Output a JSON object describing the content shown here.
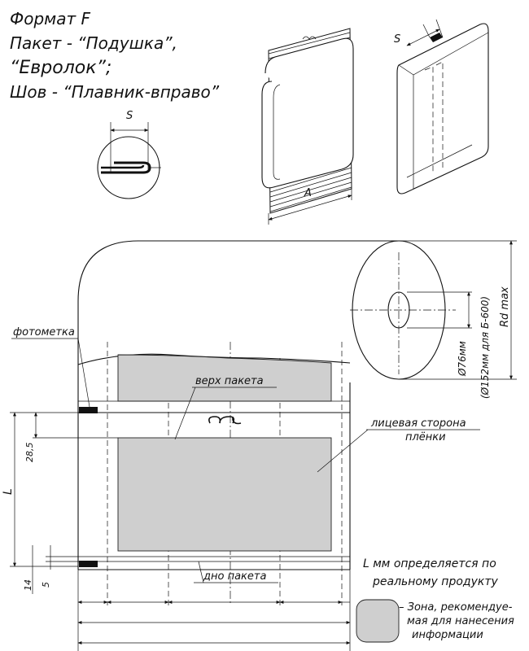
{
  "title": {
    "line1": "Формат F",
    "line2": "Пакет - “Подушка”,",
    "line3": "“Евролок”;",
    "line4": "Шов - “Плавник-вправо”"
  },
  "dims": {
    "s_detail": "S",
    "s_box": "S",
    "a": "A",
    "rd_max": "Rd max",
    "core": "Ø76мм",
    "core_alt": "(Ø152мм для Б-600)",
    "l": "L",
    "d28": "28,5",
    "d14": "14",
    "d5": "5"
  },
  "labels": {
    "photomark": "фотометка",
    "bag_top": "верх пакета",
    "face_line1": "лицевая сторона",
    "face_line2": "плёнки",
    "bag_bottom": "дно пакета"
  },
  "notes": {
    "l_line1": "L мм  определяется по",
    "l_line2": "реальному продукту",
    "zone_line1": "– Зона, рекомендуе-",
    "zone_line2": "мая для нанесения",
    "zone_line3": "информации"
  },
  "colors": {
    "zone_fill": "#cfcfcf",
    "line": "#111111"
  }
}
